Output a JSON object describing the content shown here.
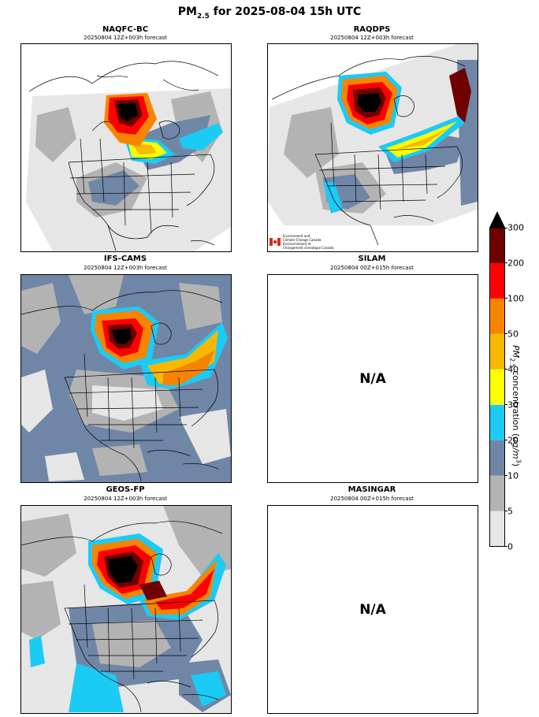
{
  "title": {
    "prefix": "PM",
    "sub": "2.5",
    "suffix": " for 2025-08-04 15h UTC"
  },
  "panels": [
    {
      "name": "NAQFC-BC",
      "subtitle": "20250804 12Z+003h forecast",
      "available": true
    },
    {
      "name": "RAQDPS",
      "subtitle": "20250804 12Z+003h forecast",
      "available": true,
      "logo": [
        "Environment and",
        "Climate Change Canada",
        "Environnement et",
        "Changement climatique Canada"
      ]
    },
    {
      "name": "IFS-CAMS",
      "subtitle": "20250804 12Z+003h forecast",
      "available": true
    },
    {
      "name": "SILAM",
      "subtitle": "20250804 00Z+015h forecast",
      "available": false,
      "na_text": "N/A"
    },
    {
      "name": "GEOS-FP",
      "subtitle": "20250804 12Z+003h forecast",
      "available": true
    },
    {
      "name": "MASINGAR",
      "subtitle": "20250804 00Z+015h forecast",
      "available": false,
      "na_text": "N/A"
    }
  ],
  "colorbar": {
    "label_prefix": "PM",
    "label_sub": "2.5",
    "label_suffix": " concentration (",
    "unit_base": "ug/m",
    "unit_sup": "3",
    "unit_close": ")",
    "ticks": [
      "0",
      "5",
      "10",
      "20",
      "30",
      "40",
      "50",
      "100",
      "200",
      "300"
    ],
    "colors": [
      "#e6e6e6",
      "#b3b3b3",
      "#7086a7",
      "#1ccbf4",
      "#ffff00",
      "#f8b800",
      "#f78400",
      "#ff0000",
      "#6e0000"
    ],
    "extend_color": "#000000"
  }
}
